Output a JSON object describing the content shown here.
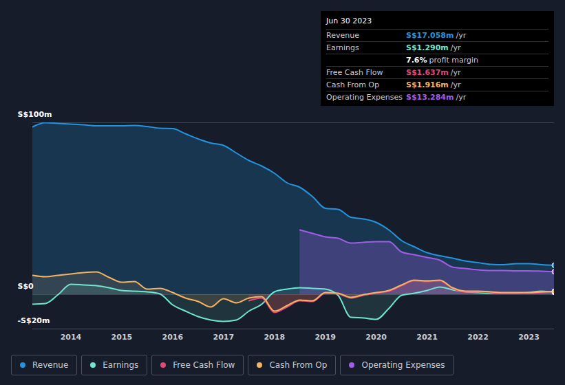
{
  "chart_data": {
    "type": "line",
    "x": [
      2013.25,
      2013.5,
      2013.75,
      2014,
      2014.25,
      2014.5,
      2014.75,
      2015,
      2015.25,
      2015.5,
      2015.75,
      2016,
      2016.25,
      2016.5,
      2016.75,
      2017,
      2017.25,
      2017.5,
      2017.75,
      2018,
      2018.25,
      2018.5,
      2018.75,
      2019,
      2019.25,
      2019.5,
      2019.75,
      2020,
      2020.25,
      2020.5,
      2020.75,
      2021,
      2021.25,
      2021.5,
      2021.75,
      2022,
      2022.25,
      2022.5,
      2022.75,
      2023,
      2023.25,
      2023.5
    ],
    "series": [
      {
        "name": "Revenue",
        "color": "#2394df",
        "values": [
          97.6,
          100,
          99.6,
          99.2,
          98.8,
          98.2,
          98.2,
          98.2,
          98.4,
          97.8,
          96.8,
          96.6,
          93.6,
          90.6,
          88.2,
          86.8,
          82.4,
          78,
          74.8,
          70.6,
          65,
          62.4,
          57,
          50.2,
          49.6,
          45,
          44,
          42,
          37.6,
          31.4,
          27.8,
          24.4,
          22.6,
          21.2,
          19.6,
          18.6,
          17.6,
          17.4,
          18,
          18,
          17.4,
          17.058
        ]
      },
      {
        "name": "Earnings",
        "color": "#6ee6d0",
        "values": [
          -5.6,
          -5.2,
          0,
          6,
          5.6,
          5.2,
          4,
          2.4,
          2,
          1.6,
          0.4,
          -6,
          -9.6,
          -12.8,
          -14.8,
          -15.6,
          -14.8,
          -9.6,
          -5.6,
          1.6,
          3.2,
          4,
          3.6,
          3.2,
          -0.4,
          -13.2,
          -13.6,
          -14.4,
          -8,
          -0.4,
          0.8,
          2.4,
          4.4,
          2.8,
          1.6,
          1.2,
          0.8,
          0.8,
          0.8,
          1.2,
          2,
          1.29
        ]
      },
      {
        "name": "Free Cash Flow",
        "color": "#e0487a",
        "values": [
          null,
          null,
          null,
          null,
          null,
          null,
          null,
          null,
          null,
          null,
          null,
          null,
          null,
          null,
          null,
          null,
          null,
          -3.6,
          -2,
          -10.4,
          -7.2,
          -3.6,
          -4,
          0.8,
          0.4,
          -2,
          -0.4,
          0.8,
          2,
          5.2,
          8,
          7.6,
          8,
          3.6,
          1.6,
          1.6,
          1.2,
          0.8,
          0.8,
          0.8,
          1.2,
          1.637
        ]
      },
      {
        "name": "Cash From Op",
        "color": "#f5b461",
        "values": [
          11.2,
          10.4,
          11.2,
          12,
          12.8,
          13.2,
          10,
          7.2,
          7.6,
          3.2,
          3.6,
          1.2,
          -2,
          -4,
          -7.2,
          -2.4,
          -4.8,
          -2,
          -1.2,
          -9.6,
          -6.4,
          -3.2,
          -3.6,
          1.2,
          0.8,
          -1.6,
          0,
          1.2,
          2.4,
          5.6,
          8.4,
          8,
          8.4,
          4,
          2,
          2,
          1.6,
          1.2,
          1.2,
          1.2,
          1.6,
          1.916
        ]
      },
      {
        "name": "Operating Expenses",
        "color": "#a35ce8",
        "values": [
          null,
          null,
          null,
          null,
          null,
          null,
          null,
          null,
          null,
          null,
          null,
          null,
          null,
          null,
          null,
          null,
          null,
          null,
          null,
          null,
          null,
          37.6,
          35.6,
          33.6,
          32.8,
          30,
          30.4,
          30.8,
          30.8,
          24.8,
          23.2,
          21.6,
          20,
          16,
          15.2,
          14.4,
          14,
          14,
          13.8,
          13.8,
          13.6,
          13.284
        ]
      }
    ],
    "xlim": [
      2013.25,
      2023.5
    ],
    "xticks": [
      2014,
      2015,
      2016,
      2017,
      2018,
      2019,
      2020,
      2021,
      2022,
      2023
    ],
    "ylim": [
      -20,
      100
    ],
    "yticks": [
      {
        "value": 100,
        "label": "S$100m"
      },
      {
        "value": 0,
        "label": "S$0"
      },
      {
        "value": -20,
        "label": "-S$20m"
      }
    ],
    "grid": true,
    "legend": "bottom",
    "tooltip": {
      "date": "Jun 30 2023",
      "rows": [
        {
          "label": "Revenue",
          "value": "S$17.058m",
          "unit": "/yr",
          "color": "#2394df"
        },
        {
          "label": "Earnings",
          "value": "S$1.290m",
          "unit": "/yr",
          "color": "#6ee6d0"
        },
        {
          "value": "7.6%",
          "unit": "profit margin",
          "color": "#ffffff"
        },
        {
          "label": "Free Cash Flow",
          "value": "S$1.637m",
          "unit": "/yr",
          "color": "#e0487a"
        },
        {
          "label": "Cash From Op",
          "value": "S$1.916m",
          "unit": "/yr",
          "color": "#f5b461"
        },
        {
          "label": "Operating Expenses",
          "value": "S$13.284m",
          "unit": "/yr",
          "color": "#a35ce8"
        }
      ]
    }
  }
}
